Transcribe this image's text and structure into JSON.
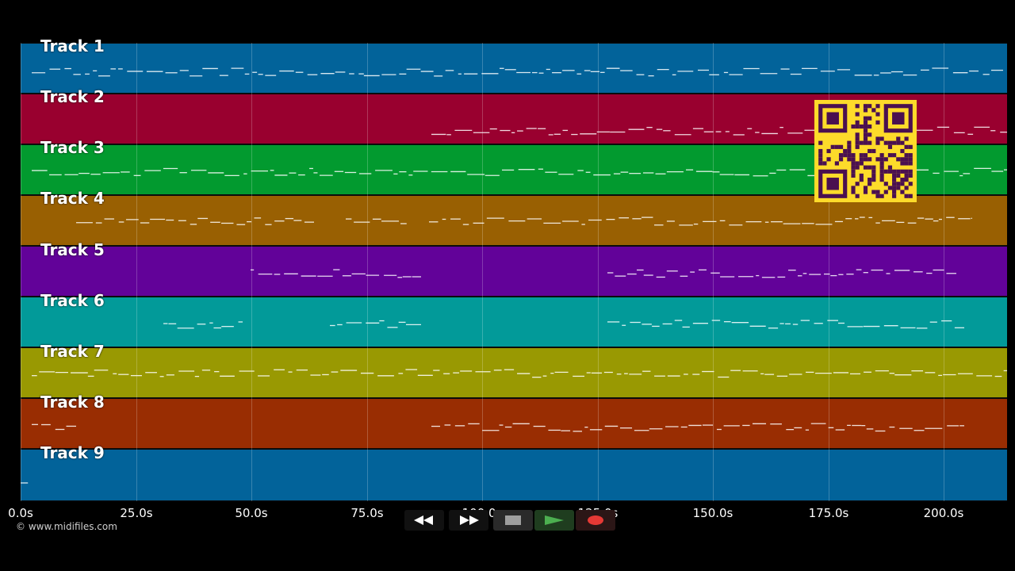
{
  "app": {
    "tracks": [
      {
        "label": "Track 1",
        "color": "#02639a"
      },
      {
        "label": "Track 2",
        "color": "#99002f"
      },
      {
        "label": "Track 3",
        "color": "#029a2f"
      },
      {
        "label": "Track 4",
        "color": "#996002"
      },
      {
        "label": "Track 5",
        "color": "#620299"
      },
      {
        "label": "Track 6",
        "color": "#029a99"
      },
      {
        "label": "Track 7",
        "color": "#999902"
      },
      {
        "label": "Track 8",
        "color": "#992d02"
      },
      {
        "label": "Track 9",
        "color": "#02639a"
      }
    ],
    "time_axis": {
      "ticks": [
        "0.0s",
        "25.0s",
        "50.0s",
        "75.0s",
        "100.0s",
        "125.0s",
        "150.0s",
        "175.0s",
        "200.0s"
      ]
    },
    "copyright": "© www.midifiles.com",
    "controls": {
      "rewind_icon": "rewind-icon",
      "fast_forward_icon": "fast-forward-icon",
      "stop_icon": "stop-icon",
      "play_icon": "play-icon",
      "record_icon": "record-icon",
      "play_color": "#4caf50",
      "record_color": "#e53935"
    },
    "qr_code": {
      "color": "#fddb2a",
      "dark": "#4a1050"
    }
  }
}
